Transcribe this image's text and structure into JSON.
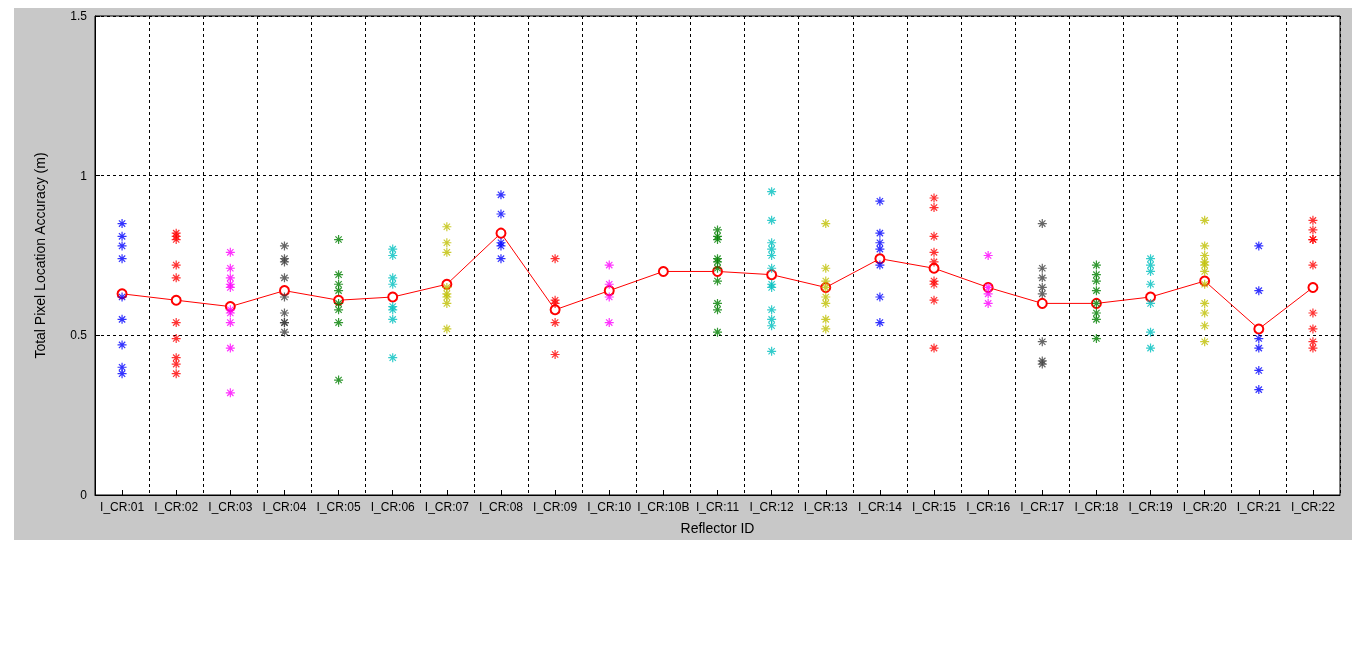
{
  "chart_data": {
    "type": "scatter",
    "xlabel": "Reflector ID",
    "ylabel": "Total Pixel Location Accuracy (m)",
    "categories": [
      "I_CR:01",
      "I_CR:02",
      "I_CR:03",
      "I_CR:04",
      "I_CR:05",
      "I_CR:06",
      "I_CR:07",
      "I_CR:08",
      "I_CR:09",
      "I_CR:10",
      "I_CR:10B",
      "I_CR:11",
      "I_CR:12",
      "I_CR:13",
      "I_CR:14",
      "I_CR:15",
      "I_CR:16",
      "I_CR:17",
      "I_CR:18",
      "I_CR:19",
      "I_CR:20",
      "I_CR:21",
      "I_CR:22"
    ],
    "ylim": [
      0,
      1.5
    ],
    "yticks": [
      0,
      0.5,
      1,
      1.5
    ],
    "grid": true,
    "marker": "cross",
    "series": [
      {
        "color": "#0000ff",
        "x": [
          "I_CR:01",
          "I_CR:01",
          "I_CR:01",
          "I_CR:01",
          "I_CR:01",
          "I_CR:01",
          "I_CR:01",
          "I_CR:01",
          "I_CR:01"
        ],
        "values": [
          0.85,
          0.81,
          0.78,
          0.74,
          0.62,
          0.55,
          0.47,
          0.4,
          0.38
        ]
      },
      {
        "color": "#ff0000",
        "x": [
          "I_CR:02",
          "I_CR:02",
          "I_CR:02",
          "I_CR:02",
          "I_CR:02",
          "I_CR:02",
          "I_CR:02",
          "I_CR:02",
          "I_CR:02",
          "I_CR:02"
        ],
        "values": [
          0.82,
          0.81,
          0.8,
          0.72,
          0.68,
          0.54,
          0.49,
          0.43,
          0.41,
          0.38
        ]
      },
      {
        "color": "#ff00ff",
        "x": [
          "I_CR:03",
          "I_CR:03",
          "I_CR:03",
          "I_CR:03",
          "I_CR:03",
          "I_CR:03",
          "I_CR:03",
          "I_CR:03",
          "I_CR:03",
          "I_CR:03"
        ],
        "values": [
          0.76,
          0.71,
          0.68,
          0.66,
          0.65,
          0.58,
          0.57,
          0.54,
          0.46,
          0.32
        ]
      },
      {
        "color": "#404040",
        "x": [
          "I_CR:04",
          "I_CR:04",
          "I_CR:04",
          "I_CR:04",
          "I_CR:04",
          "I_CR:04",
          "I_CR:04",
          "I_CR:04",
          "I_CR:04"
        ],
        "values": [
          0.78,
          0.74,
          0.73,
          0.68,
          0.62,
          0.57,
          0.54,
          0.54,
          0.51
        ]
      },
      {
        "color": "#008000",
        "x": [
          "I_CR:05",
          "I_CR:05",
          "I_CR:05",
          "I_CR:05",
          "I_CR:05",
          "I_CR:05",
          "I_CR:05",
          "I_CR:05"
        ],
        "values": [
          0.8,
          0.69,
          0.66,
          0.64,
          0.6,
          0.58,
          0.54,
          0.36
        ]
      },
      {
        "color": "#00bfbf",
        "x": [
          "I_CR:06",
          "I_CR:06",
          "I_CR:06",
          "I_CR:06",
          "I_CR:06",
          "I_CR:06",
          "I_CR:06",
          "I_CR:06"
        ],
        "values": [
          0.77,
          0.75,
          0.68,
          0.66,
          0.59,
          0.58,
          0.55,
          0.43
        ]
      },
      {
        "color": "#bfbf00",
        "x": [
          "I_CR:07",
          "I_CR:07",
          "I_CR:07",
          "I_CR:07",
          "I_CR:07",
          "I_CR:07",
          "I_CR:07",
          "I_CR:07"
        ],
        "values": [
          0.84,
          0.79,
          0.76,
          0.65,
          0.63,
          0.62,
          0.6,
          0.52
        ]
      },
      {
        "color": "#0000ff",
        "x": [
          "I_CR:08",
          "I_CR:08",
          "I_CR:08",
          "I_CR:08",
          "I_CR:08"
        ],
        "values": [
          0.94,
          0.88,
          0.79,
          0.78,
          0.74
        ]
      },
      {
        "color": "#ff0000",
        "x": [
          "I_CR:09",
          "I_CR:09",
          "I_CR:09",
          "I_CR:09",
          "I_CR:09"
        ],
        "values": [
          0.74,
          0.61,
          0.6,
          0.54,
          0.44
        ]
      },
      {
        "color": "#ff00ff",
        "x": [
          "I_CR:10",
          "I_CR:10",
          "I_CR:10",
          "I_CR:10"
        ],
        "values": [
          0.72,
          0.66,
          0.62,
          0.54
        ]
      },
      {
        "color": "#008000",
        "x": [
          "I_CR:11",
          "I_CR:11",
          "I_CR:11",
          "I_CR:11",
          "I_CR:11",
          "I_CR:11",
          "I_CR:11",
          "I_CR:11",
          "I_CR:11",
          "I_CR:11"
        ],
        "values": [
          0.83,
          0.81,
          0.8,
          0.74,
          0.73,
          0.71,
          0.67,
          0.6,
          0.58,
          0.51
        ]
      },
      {
        "color": "#00bfbf",
        "x": [
          "I_CR:12",
          "I_CR:12",
          "I_CR:12",
          "I_CR:12",
          "I_CR:12",
          "I_CR:12",
          "I_CR:12",
          "I_CR:12",
          "I_CR:12",
          "I_CR:12",
          "I_CR:12",
          "I_CR:12"
        ],
        "values": [
          0.95,
          0.86,
          0.79,
          0.77,
          0.75,
          0.71,
          0.66,
          0.65,
          0.58,
          0.55,
          0.53,
          0.45
        ]
      },
      {
        "color": "#bfbf00",
        "x": [
          "I_CR:13",
          "I_CR:13",
          "I_CR:13",
          "I_CR:13",
          "I_CR:13",
          "I_CR:13",
          "I_CR:13",
          "I_CR:13"
        ],
        "values": [
          0.85,
          0.71,
          0.67,
          0.65,
          0.62,
          0.6,
          0.55,
          0.52
        ]
      },
      {
        "color": "#0000ff",
        "x": [
          "I_CR:14",
          "I_CR:14",
          "I_CR:14",
          "I_CR:14",
          "I_CR:14",
          "I_CR:14",
          "I_CR:14"
        ],
        "values": [
          0.92,
          0.82,
          0.79,
          0.77,
          0.72,
          0.62,
          0.54
        ]
      },
      {
        "color": "#ff0000",
        "x": [
          "I_CR:15",
          "I_CR:15",
          "I_CR:15",
          "I_CR:15",
          "I_CR:15",
          "I_CR:15",
          "I_CR:15",
          "I_CR:15",
          "I_CR:15"
        ],
        "values": [
          0.93,
          0.9,
          0.81,
          0.76,
          0.73,
          0.67,
          0.66,
          0.61,
          0.46
        ]
      },
      {
        "color": "#ff00ff",
        "x": [
          "I_CR:16",
          "I_CR:16",
          "I_CR:16",
          "I_CR:16"
        ],
        "values": [
          0.75,
          0.65,
          0.63,
          0.6
        ]
      },
      {
        "color": "#404040",
        "x": [
          "I_CR:17",
          "I_CR:17",
          "I_CR:17",
          "I_CR:17",
          "I_CR:17",
          "I_CR:17",
          "I_CR:17",
          "I_CR:17"
        ],
        "values": [
          0.85,
          0.71,
          0.68,
          0.65,
          0.63,
          0.48,
          0.42,
          0.41
        ]
      },
      {
        "color": "#008000",
        "x": [
          "I_CR:18",
          "I_CR:18",
          "I_CR:18",
          "I_CR:18",
          "I_CR:18",
          "I_CR:18",
          "I_CR:18",
          "I_CR:18"
        ],
        "values": [
          0.72,
          0.69,
          0.67,
          0.64,
          0.6,
          0.57,
          0.55,
          0.49
        ]
      },
      {
        "color": "#00bfbf",
        "x": [
          "I_CR:19",
          "I_CR:19",
          "I_CR:19",
          "I_CR:19",
          "I_CR:19",
          "I_CR:19",
          "I_CR:19"
        ],
        "values": [
          0.74,
          0.72,
          0.7,
          0.66,
          0.6,
          0.51,
          0.46
        ]
      },
      {
        "color": "#bfbf00",
        "x": [
          "I_CR:20",
          "I_CR:20",
          "I_CR:20",
          "I_CR:20",
          "I_CR:20",
          "I_CR:20",
          "I_CR:20",
          "I_CR:20",
          "I_CR:20",
          "I_CR:20",
          "I_CR:20"
        ],
        "values": [
          0.86,
          0.78,
          0.75,
          0.73,
          0.72,
          0.7,
          0.66,
          0.6,
          0.57,
          0.53,
          0.48
        ]
      },
      {
        "color": "#0000ff",
        "x": [
          "I_CR:21",
          "I_CR:21",
          "I_CR:21",
          "I_CR:21",
          "I_CR:21",
          "I_CR:21"
        ],
        "values": [
          0.78,
          0.64,
          0.49,
          0.46,
          0.39,
          0.33
        ]
      },
      {
        "color": "#ff0000",
        "x": [
          "I_CR:22",
          "I_CR:22",
          "I_CR:22",
          "I_CR:22",
          "I_CR:22",
          "I_CR:22",
          "I_CR:22",
          "I_CR:22",
          "I_CR:22"
        ],
        "values": [
          0.86,
          0.83,
          0.8,
          0.8,
          0.72,
          0.57,
          0.52,
          0.48,
          0.46
        ]
      },
      {
        "type": "line",
        "marker": "circle",
        "line_style": "solid",
        "color": "#ff0000",
        "values": [
          0.63,
          0.61,
          0.59,
          0.64,
          0.61,
          0.62,
          0.66,
          0.82,
          0.58,
          0.64,
          0.7,
          0.7,
          0.69,
          0.65,
          0.74,
          0.71,
          0.65,
          0.6,
          0.6,
          0.62,
          0.67,
          0.52,
          0.65
        ]
      }
    ]
  }
}
